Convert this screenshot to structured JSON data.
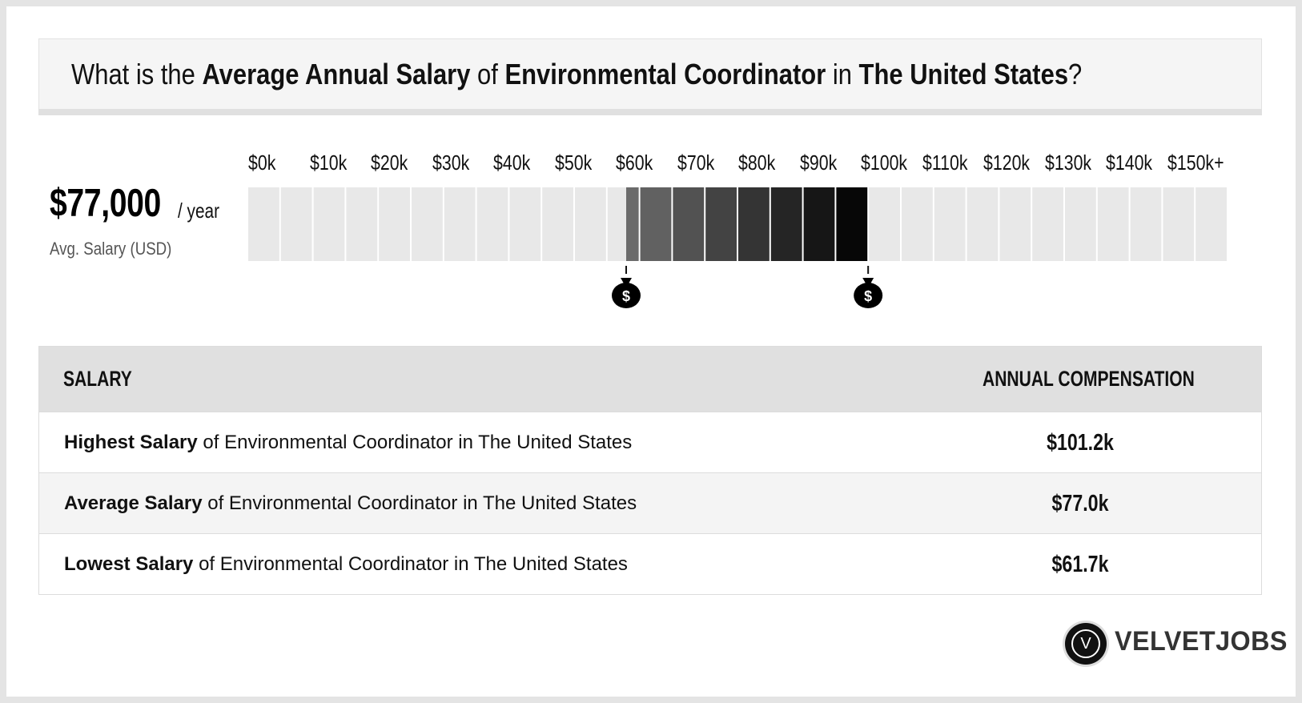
{
  "title": {
    "prefix": "What is the ",
    "emph1": "Average Annual Salary",
    "mid1": " of ",
    "emph2": "Environmental Coordinator",
    "mid2": " in ",
    "emph3": "The United States",
    "suffix": "?"
  },
  "summary": {
    "value": "$77,000",
    "unit": "/ year",
    "label": "Avg. Salary (USD)"
  },
  "chart_data": {
    "type": "bar",
    "title": "",
    "ticks": [
      "$0k",
      "$10k",
      "$20k",
      "$30k",
      "$40k",
      "$50k",
      "$60k",
      "$70k",
      "$80k",
      "$90k",
      "$100k",
      "$110k",
      "$120k",
      "$130k",
      "$140k",
      "$150k+"
    ],
    "xlim": [
      0,
      160
    ],
    "range": {
      "low": 61.7,
      "average": 77.0,
      "high": 101.2
    },
    "markers": [
      {
        "name": "low-marker",
        "value": 61.7,
        "icon": "money-bag-icon"
      },
      {
        "name": "high-marker",
        "value": 101.2,
        "icon": "money-bag-icon"
      }
    ],
    "colors": {
      "empty": "#e8e8e8",
      "range_start": "#6e6e6e",
      "range_end": "#000000"
    }
  },
  "table": {
    "headers": {
      "salary": "SALARY",
      "compensation": "ANNUAL COMPENSATION"
    },
    "rows": [
      {
        "bold": "Highest Salary",
        "rest": " of Environmental Coordinator in The United States",
        "value": "$101.2k"
      },
      {
        "bold": "Average Salary",
        "rest": " of Environmental Coordinator in The United States",
        "value": "$77.0k"
      },
      {
        "bold": "Lowest Salary",
        "rest": " of Environmental Coordinator in The United States",
        "value": "$61.7k"
      }
    ]
  },
  "brand": {
    "mark": "V",
    "name": "VELVETJOBS"
  }
}
